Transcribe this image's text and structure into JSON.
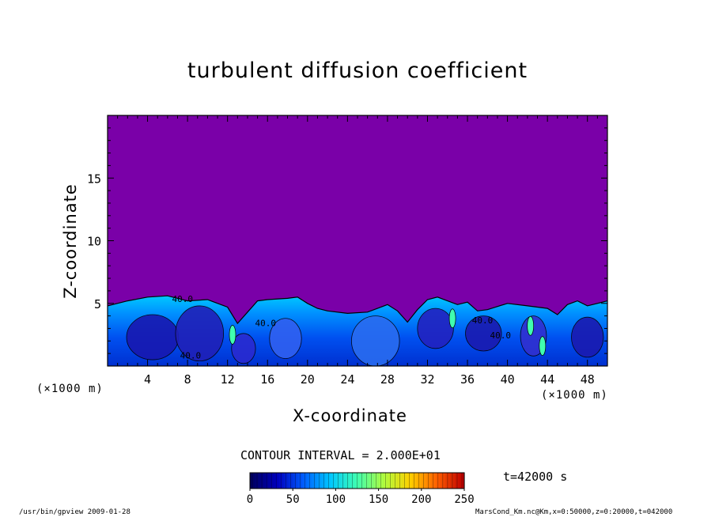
{
  "chart_data": {
    "type": "heatmap",
    "title": "turbulent diffusion coefficient",
    "xlabel": "X-coordinate",
    "ylabel": "Z-coordinate",
    "x_unit": "(×1000 m)",
    "y_unit": "(×1000 m)",
    "xlim": [
      0,
      50
    ],
    "ylim": [
      0,
      20
    ],
    "x_ticks": [
      4,
      8,
      12,
      16,
      20,
      24,
      28,
      32,
      36,
      40,
      44,
      48
    ],
    "y_ticks": [
      5,
      10,
      15
    ],
    "contour_interval": "CONTOUR INTERVAL = 2.000E+01",
    "time_label": "t=42000 s",
    "colorbar": {
      "min": 0,
      "max": 250,
      "ticks": [
        0,
        50,
        100,
        150,
        200,
        250
      ]
    },
    "contour_labels": [
      {
        "text": "40.0",
        "x": 7.5,
        "z": 5.1
      },
      {
        "text": "40.0",
        "x": 15.8,
        "z": 3.2
      },
      {
        "text": "40.0",
        "x": 39.3,
        "z": 2.2
      },
      {
        "text": "40.0",
        "x": 8.3,
        "z": 0.6
      },
      {
        "text": "40.0",
        "x": 37.5,
        "z": 3.4
      }
    ],
    "boundary_layer_top": [
      [
        0,
        4.8
      ],
      [
        2,
        5.2
      ],
      [
        4,
        5.5
      ],
      [
        6,
        5.6
      ],
      [
        8,
        5.2
      ],
      [
        10,
        5.3
      ],
      [
        12,
        4.7
      ],
      [
        13,
        3.4
      ],
      [
        14,
        4.3
      ],
      [
        15,
        5.2
      ],
      [
        16,
        5.3
      ],
      [
        18,
        5.4
      ],
      [
        19,
        5.5
      ],
      [
        20,
        5.0
      ],
      [
        21,
        4.6
      ],
      [
        22,
        4.4
      ],
      [
        24,
        4.2
      ],
      [
        26,
        4.3
      ],
      [
        27,
        4.6
      ],
      [
        28,
        4.9
      ],
      [
        29,
        4.4
      ],
      [
        30,
        3.5
      ],
      [
        31,
        4.5
      ],
      [
        32,
        5.3
      ],
      [
        33,
        5.5
      ],
      [
        34,
        5.2
      ],
      [
        35,
        4.9
      ],
      [
        36,
        5.1
      ],
      [
        37,
        4.4
      ],
      [
        38,
        4.5
      ],
      [
        40,
        5.0
      ],
      [
        42,
        4.8
      ],
      [
        44,
        4.6
      ],
      [
        45,
        4.1
      ],
      [
        46,
        4.9
      ],
      [
        47,
        5.2
      ],
      [
        48,
        4.8
      ],
      [
        50,
        5.2
      ]
    ],
    "background_color": "#7a00a8",
    "colormap": [
      "#000060",
      "#0000c0",
      "#0060ff",
      "#00c8ff",
      "#40ffb0",
      "#b0ff40",
      "#ffd000",
      "#ff6000",
      "#c00000"
    ]
  },
  "footer": {
    "left": "/usr/bin/gpview  2009-01-28",
    "right": "MarsCond_Km.nc@Km,x=0:50000,z=0:20000,t=042000"
  }
}
